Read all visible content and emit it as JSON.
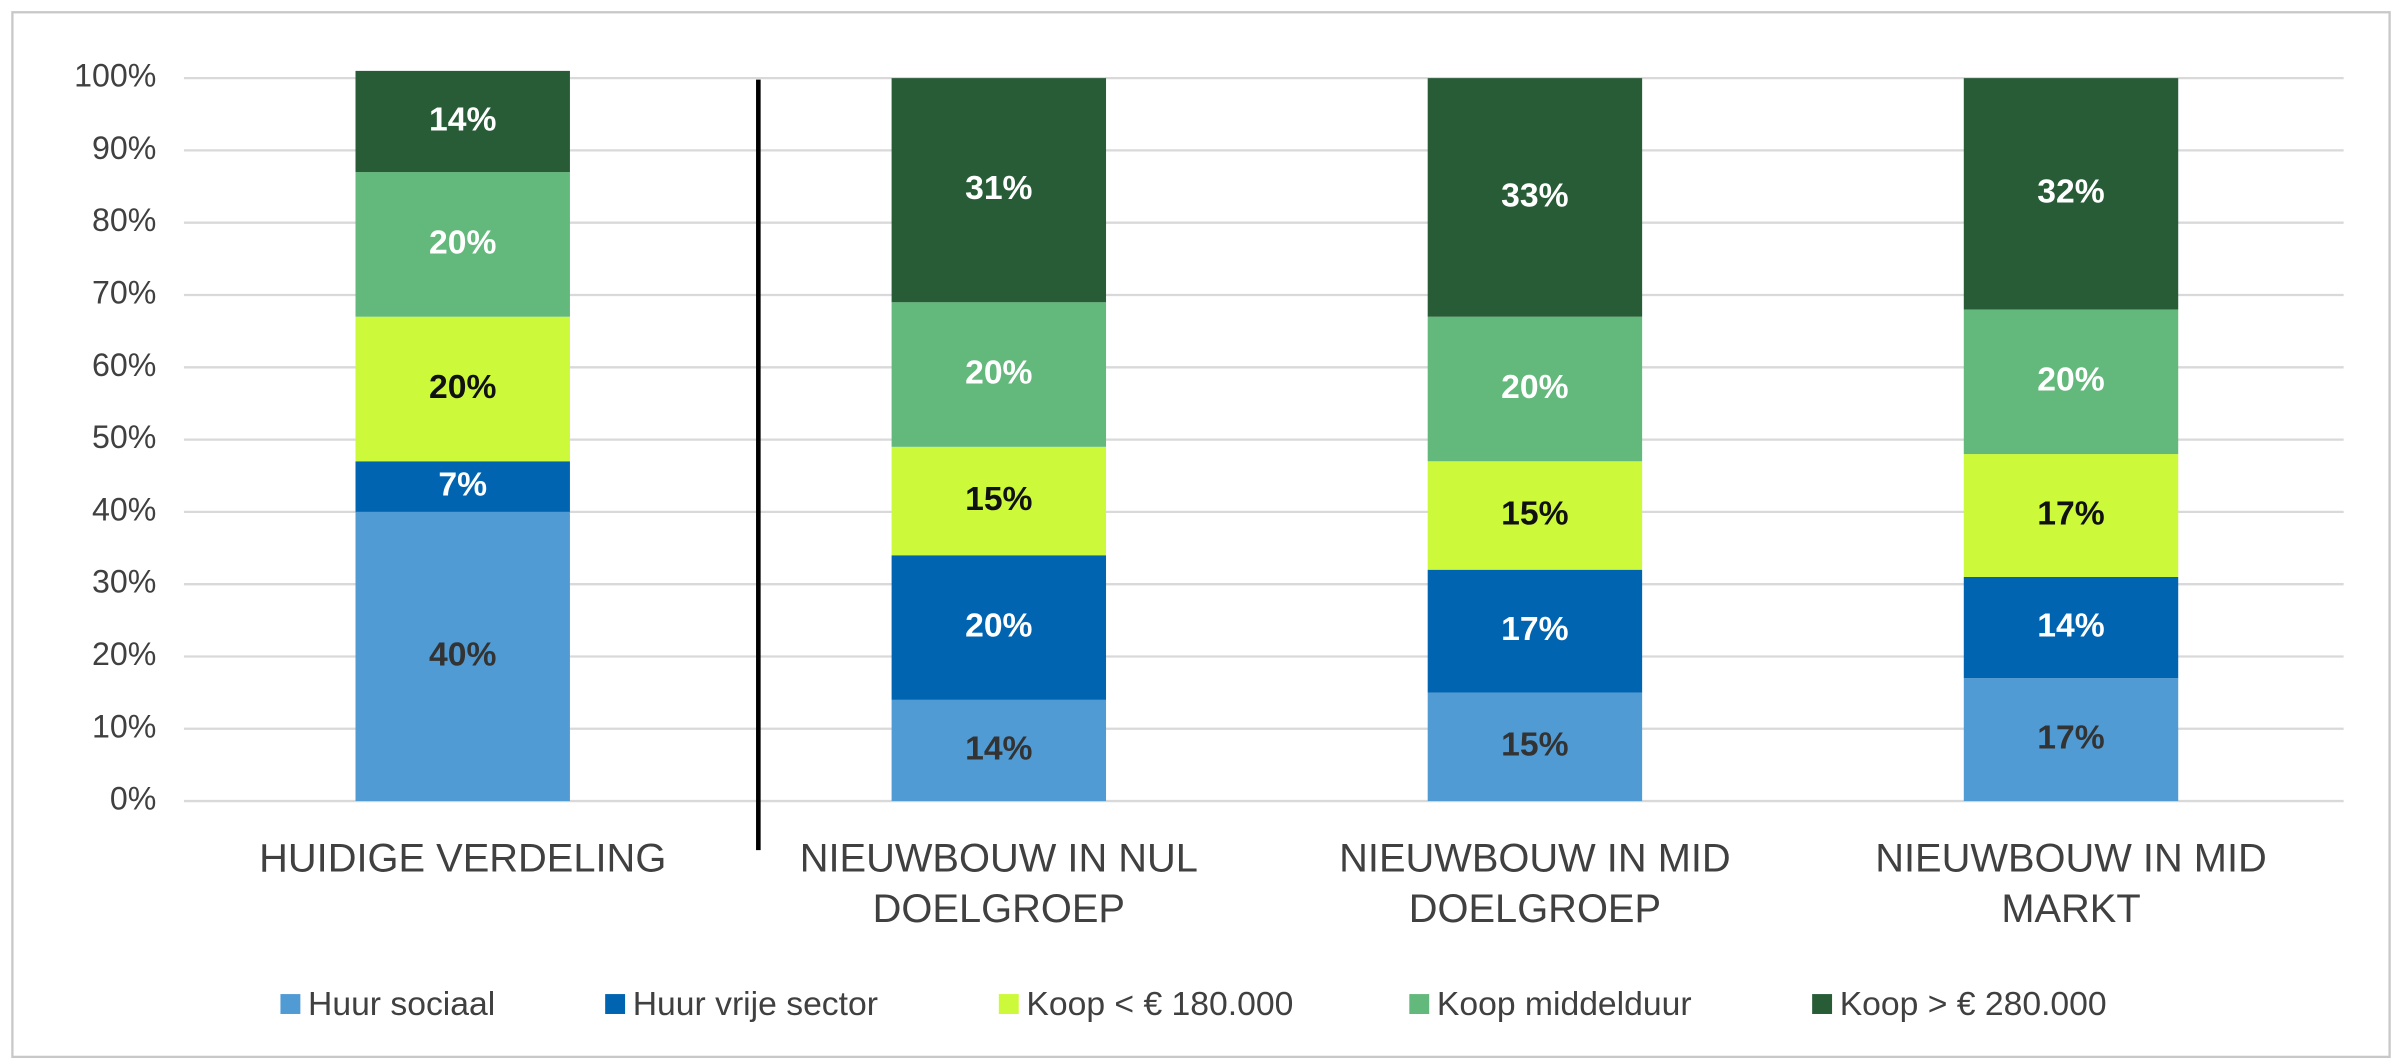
{
  "chart_data": {
    "type": "stacked_bar",
    "categories": [
      "HUIDIGE VERDELING",
      "NIEUWBOUW IN NUL DOELGROEP",
      "NIEUWBOUW IN MID DOELGROEP",
      "NIEUWBOUW IN MID MARKT"
    ],
    "series": [
      {
        "name": "Huur sociaal",
        "color": "#519bd4",
        "label_color": "#333333",
        "values": [
          40,
          14,
          15,
          17
        ],
        "value_labels": [
          "40%",
          "14%",
          "15%",
          "17%"
        ]
      },
      {
        "name": "Huur vrije sector",
        "color": "#0064b1",
        "label_color": "#ffffff",
        "values": [
          7,
          20,
          17,
          14
        ],
        "value_labels": [
          "7%",
          "20%",
          "17%",
          "14%"
        ]
      },
      {
        "name": "Koop < € 180.000",
        "color": "#ccf93a",
        "label_color": "#111111",
        "values": [
          20,
          15,
          15,
          17
        ],
        "value_labels": [
          "20%",
          "15%",
          "15%",
          "17%"
        ]
      },
      {
        "name": "Koop middelduur",
        "color": "#63b87b",
        "label_color": "#ffffff",
        "values": [
          20,
          20,
          20,
          20
        ],
        "value_labels": [
          "20%",
          "20%",
          "20%",
          "20%"
        ]
      },
      {
        "name": "Koop > € 280.000",
        "color": "#275c37",
        "label_color": "#ffffff",
        "values": [
          14,
          31,
          33,
          32
        ],
        "value_labels": [
          "14%",
          "31%",
          "33%",
          "32%"
        ]
      }
    ],
    "ylim": [
      0,
      100
    ],
    "yticks": [
      {
        "value": 0,
        "label": "0%"
      },
      {
        "value": 10,
        "label": "10%"
      },
      {
        "value": 20,
        "label": "20%"
      },
      {
        "value": 30,
        "label": "30%"
      },
      {
        "value": 40,
        "label": "40%"
      },
      {
        "value": 50,
        "label": "50%"
      },
      {
        "value": 60,
        "label": "60%"
      },
      {
        "value": 70,
        "label": "70%"
      },
      {
        "value": 80,
        "label": "80%"
      },
      {
        "value": 90,
        "label": "90%"
      },
      {
        "value": 100,
        "label": "100%"
      }
    ],
    "grid": true,
    "legend": "bottom"
  }
}
